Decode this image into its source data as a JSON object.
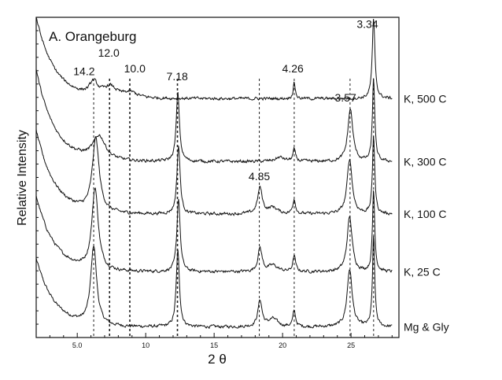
{
  "chart_data": {
    "type": "line",
    "title": "A.  Orangeburg",
    "xlabel": "2 θ",
    "ylabel": "Relative Intensity",
    "xlim": [
      2,
      28.5
    ],
    "ylim": [
      0,
      6.1
    ],
    "x_ticks": [
      5,
      10,
      15,
      20,
      25
    ],
    "x_tick_labels": [
      "5.0",
      "10",
      "15",
      "20",
      "25"
    ],
    "series": [
      {
        "name": "Mg & Gly",
        "baseline": 0.2,
        "decay": 1.3,
        "noise": 0.045,
        "peaks": [
          [
            6.2,
            1.5,
            0.26
          ],
          [
            12.35,
            1.45,
            0.14
          ],
          [
            18.35,
            0.5,
            0.18
          ],
          [
            19.3,
            0.15,
            0.4
          ],
          [
            20.85,
            0.3,
            0.12
          ],
          [
            24.9,
            1.1,
            0.22
          ],
          [
            26.65,
            1.7,
            0.1
          ]
        ]
      },
      {
        "name": "K, 25 C",
        "baseline": 1.25,
        "decay": 1.45,
        "noise": 0.045,
        "peaks": [
          [
            6.3,
            1.55,
            0.28
          ],
          [
            12.4,
            1.4,
            0.14
          ],
          [
            18.35,
            0.45,
            0.18
          ],
          [
            19.3,
            0.12,
            0.4
          ],
          [
            20.85,
            0.3,
            0.12
          ],
          [
            24.9,
            1.05,
            0.22
          ],
          [
            26.65,
            1.55,
            0.1
          ]
        ]
      },
      {
        "name": "K, 100 C",
        "baseline": 2.35,
        "decay": 1.6,
        "noise": 0.045,
        "peaks": [
          [
            6.35,
            1.4,
            0.3
          ],
          [
            12.4,
            1.3,
            0.14
          ],
          [
            18.35,
            0.5,
            0.2
          ],
          [
            19.3,
            0.12,
            0.4
          ],
          [
            20.85,
            0.28,
            0.12
          ],
          [
            24.9,
            1.05,
            0.22
          ],
          [
            26.65,
            1.5,
            0.1
          ]
        ]
      },
      {
        "name": "K, 300 C",
        "baseline": 3.35,
        "decay": 1.75,
        "noise": 0.045,
        "peaks": [
          [
            6.6,
            0.45,
            0.55
          ],
          [
            12.35,
            1.3,
            0.14
          ],
          [
            19.8,
            0.08,
            0.4
          ],
          [
            20.85,
            0.22,
            0.12
          ],
          [
            24.95,
            1.0,
            0.22
          ],
          [
            26.65,
            1.6,
            0.1
          ]
        ]
      },
      {
        "name": "K, 500 C",
        "baseline": 4.55,
        "decay": 1.55,
        "noise": 0.045,
        "peaks": [
          [
            6.2,
            0.25,
            0.35
          ],
          [
            7.4,
            0.2,
            0.6
          ],
          [
            8.9,
            0.1,
            0.6
          ],
          [
            20.85,
            0.3,
            0.1
          ],
          [
            26.65,
            1.5,
            0.12
          ]
        ]
      }
    ],
    "reference_lines": [
      {
        "label": "14.2",
        "x": 6.2
      },
      {
        "label": "12.0",
        "x": 7.36
      },
      {
        "label": "10.0",
        "x": 8.84
      },
      {
        "label": "7.18",
        "x": 12.32
      },
      {
        "label": "4.85",
        "x": 18.3
      },
      {
        "label": "4.26",
        "x": 20.85
      },
      {
        "label": "3.57",
        "x": 24.93
      },
      {
        "label": "3.34",
        "x": 26.65
      }
    ],
    "peak_labels": [
      {
        "text": "14.2",
        "x": 5.5,
        "y": 5.0
      },
      {
        "text": "12.0",
        "x": 7.3,
        "y": 5.35
      },
      {
        "text": "10.0",
        "x": 9.2,
        "y": 5.05
      },
      {
        "text": "7.18",
        "x": 12.3,
        "y": 4.9
      },
      {
        "text": "4.26",
        "x": 20.75,
        "y": 5.05
      },
      {
        "text": "3.57",
        "x": 24.6,
        "y": 4.5
      },
      {
        "text": "4.85",
        "x": 18.3,
        "y": 3.0
      },
      {
        "text": "3.34",
        "x": 26.2,
        "y": 5.9
      }
    ],
    "grid": false,
    "legend": "inline labels at right end of each trace"
  }
}
